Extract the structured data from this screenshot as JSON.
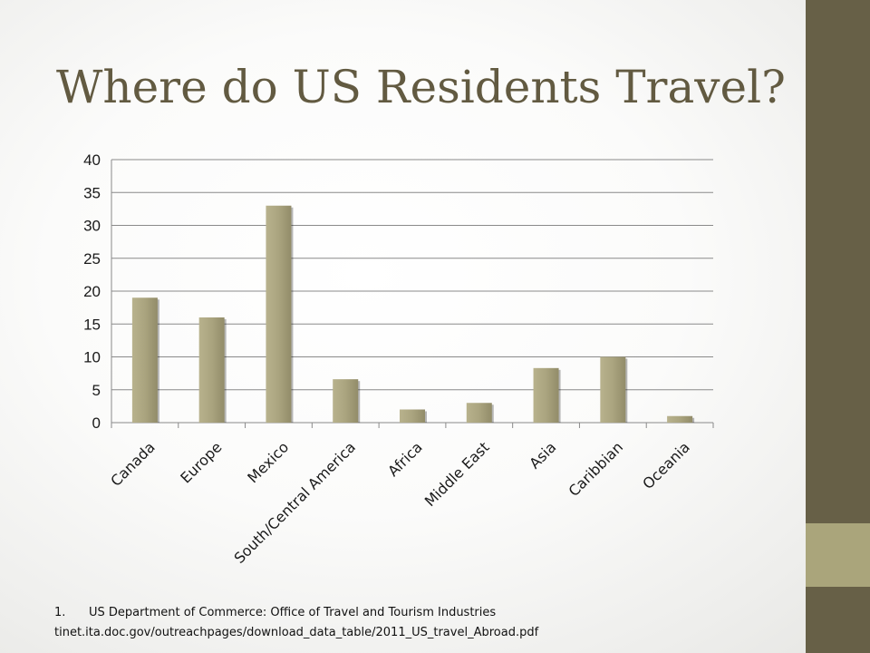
{
  "slide": {
    "title": "Where do US Residents Travel?",
    "footnote": {
      "number": "1.",
      "source": "US Department of Commerce: Office of Travel and Tourism Industries",
      "url": "tinet.ita.doc.gov/outreachpages/download_data_table/2011_US_travel_Abroad.pdf"
    },
    "colors": {
      "title": "#625a41",
      "sidebar": "#676047",
      "sidebar_accent": "#aaa57b",
      "bar": "#a9a37e"
    }
  },
  "chart_data": {
    "type": "bar",
    "categories": [
      "Canada",
      "Europe",
      "Mexico",
      "South/Central America",
      "Africa",
      "Middle East",
      "Asia",
      "Caribbian",
      "Oceania"
    ],
    "values": [
      19,
      16,
      33,
      6.6,
      2,
      3,
      8.3,
      10,
      1
    ],
    "ylim": [
      0,
      40
    ],
    "yticks": [
      0,
      5,
      10,
      15,
      20,
      25,
      30,
      35,
      40
    ],
    "grid": true,
    "legend": "none"
  }
}
